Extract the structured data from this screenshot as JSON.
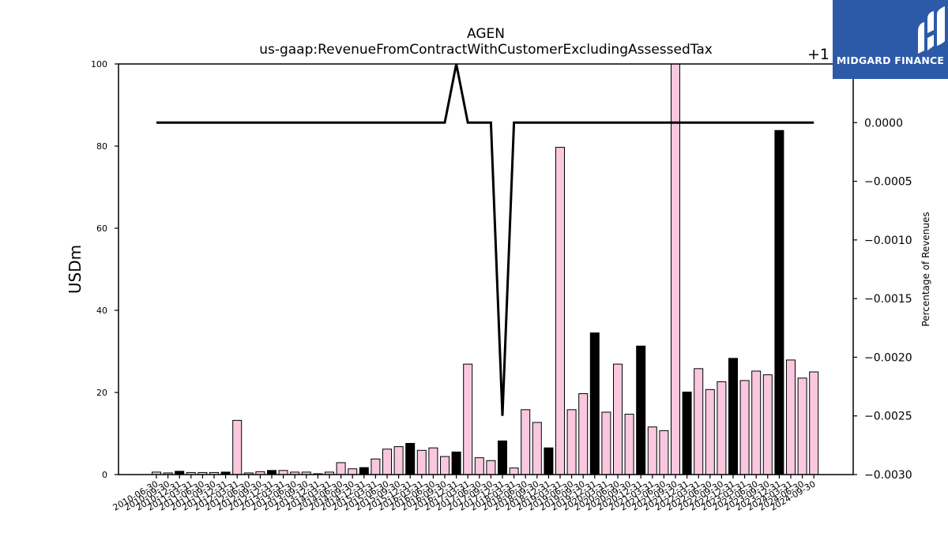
{
  "brand": {
    "name": "MIDGARD FINANCE",
    "bg_color": "#2d5aa8"
  },
  "chart_data": {
    "type": "bar",
    "title": "AGEN",
    "subtitle": "us-gaap:RevenueFromContractWithCustomerExcludingAssessedTax",
    "ylabel": "USDm",
    "y2label": "Percentage of Revenues",
    "ylim": [
      0,
      100
    ],
    "yticks": [
      0,
      20,
      40,
      60,
      80,
      100
    ],
    "y2lim": [
      -0.003,
      0.0005
    ],
    "y2ticks": [
      -0.003,
      -0.0025,
      -0.002,
      -0.0015,
      -0.001,
      -0.0005,
      0.0
    ],
    "y2tick_labels": [
      "−0.0030",
      "−0.0025",
      "−0.0020",
      "−0.0015",
      "−0.0010",
      "−0.0005",
      "0.0000"
    ],
    "y2offset": "+1",
    "colors": {
      "quarter": "#f9c8df",
      "fy": "#000000",
      "line": "#000000"
    },
    "categories": [
      "2010-06-30",
      "2010-09-30",
      "2010-12-31",
      "2011-03-31",
      "2011-06-30",
      "2011-09-30",
      "2011-12-31",
      "2012-03-31",
      "2012-06-30",
      "2012-09-30",
      "2012-12-31",
      "2013-03-31",
      "2013-06-30",
      "2013-09-30",
      "2013-12-31",
      "2014-03-31",
      "2014-06-30",
      "2014-09-30",
      "2014-12-31",
      "2015-03-31",
      "2015-06-30",
      "2015-09-30",
      "2015-12-31",
      "2016-03-31",
      "2016-06-30",
      "2016-09-30",
      "2016-12-31",
      "2017-03-31",
      "2017-06-30",
      "2017-09-30",
      "2017-12-31",
      "2018-03-31",
      "2018-06-30",
      "2018-09-30",
      "2018-12-31",
      "2019-03-31",
      "2019-06-30",
      "2019-09-30",
      "2019-12-31",
      "2020-03-31",
      "2020-06-30",
      "2020-09-30",
      "2020-12-31",
      "2021-03-31",
      "2021-06-30",
      "2021-09-30",
      "2021-12-31",
      "2022-03-31",
      "2022-06-30",
      "2022-09-30",
      "2022-12-31",
      "2023-03-31",
      "2023-06-30",
      "2023-09-30",
      "2023-12-31",
      "2024-03-31",
      "2024-06-30",
      "2024-09-30"
    ],
    "tick_labels": [
      "2010-06-30",
      "2010-09-30",
      "2010-12-31",
      "2011-03-31",
      "2011-06-30",
      "2011-09-30",
      "2011-12-31",
      "2012-03-31",
      "2012-06-30",
      "2012-09-30",
      "2012-12-31",
      "2013-03-31",
      "2013-06-30",
      "2013-09-30",
      "2013-12-31",
      "2014-03-31",
      "2014-06-30",
      "2014-09-30",
      "2014-12-31",
      "2015-03-31",
      "2015-06-30",
      "2015-09-30",
      "2015-12-31",
      "2016-03-31",
      "2016-06-30",
      "2016-09-30",
      "2016-12-31",
      "2017-03-31",
      "2017-06-30",
      "2017-09-30",
      "2017-12-31",
      "2018-03-31",
      "2018-06-30",
      "2018-09-30",
      "2018-12-31",
      "2019-03-31",
      "2019-06-30",
      "2019-09-30",
      "2019-12-31",
      "2020-03-31",
      "2020-06-30",
      "2020-09-30",
      "2020-12-31",
      "2021-03-31",
      "2021-06-30",
      "2021-09-30",
      "2021-12-31",
      "2022-03-31",
      "2022-06-30",
      "2022-09-30",
      "2022-12-31",
      "2023-03-31",
      "2023-06-30",
      "2023-09-30",
      "2023-12-31",
      "2024-03-31",
      "2024-06-30",
      "2024-09-30"
    ],
    "values": [
      0.6,
      0.4,
      0.8,
      0.5,
      0.5,
      0.5,
      0.6,
      13.2,
      0.4,
      0.7,
      1.0,
      1.0,
      0.6,
      0.6,
      0.2,
      0.6,
      2.9,
      1.4,
      1.7,
      3.8,
      6.2,
      6.8,
      7.6,
      5.9,
      6.5,
      4.4,
      5.5,
      26.9,
      4.1,
      3.4,
      8.2,
      1.6,
      15.8,
      12.7,
      6.5,
      79.7,
      15.8,
      19.7,
      34.5,
      15.2,
      26.9,
      14.7,
      31.3,
      11.6,
      10.7,
      100.0,
      20.1,
      25.8,
      20.7,
      22.6,
      28.3,
      22.9,
      25.2,
      24.3,
      83.8,
      27.9,
      23.5,
      25.0
    ],
    "is_fy": [
      false,
      false,
      true,
      false,
      false,
      false,
      true,
      false,
      false,
      false,
      true,
      false,
      false,
      false,
      false,
      false,
      false,
      false,
      true,
      false,
      false,
      false,
      true,
      false,
      false,
      false,
      true,
      false,
      false,
      false,
      true,
      false,
      false,
      false,
      true,
      false,
      false,
      false,
      true,
      false,
      false,
      false,
      true,
      false,
      false,
      false,
      true,
      false,
      false,
      false,
      true,
      false,
      false,
      false,
      true,
      false,
      false,
      false
    ],
    "series": [
      {
        "type": "line",
        "axis": "right",
        "values": [
          0,
          0,
          0,
          0,
          0,
          0,
          0,
          0,
          0,
          0,
          0,
          0,
          0,
          0,
          0,
          0,
          0,
          0,
          0,
          0,
          0,
          0,
          0,
          0,
          0,
          0,
          0.0005,
          0,
          0,
          0,
          -0.0025,
          0,
          0,
          0,
          0,
          0,
          0,
          0,
          0,
          0,
          0,
          0,
          0,
          0,
          0,
          0,
          0,
          0,
          0,
          0,
          0,
          0,
          0,
          0,
          0,
          0,
          0,
          0
        ]
      }
    ],
    "grid": false,
    "legend": "none"
  }
}
